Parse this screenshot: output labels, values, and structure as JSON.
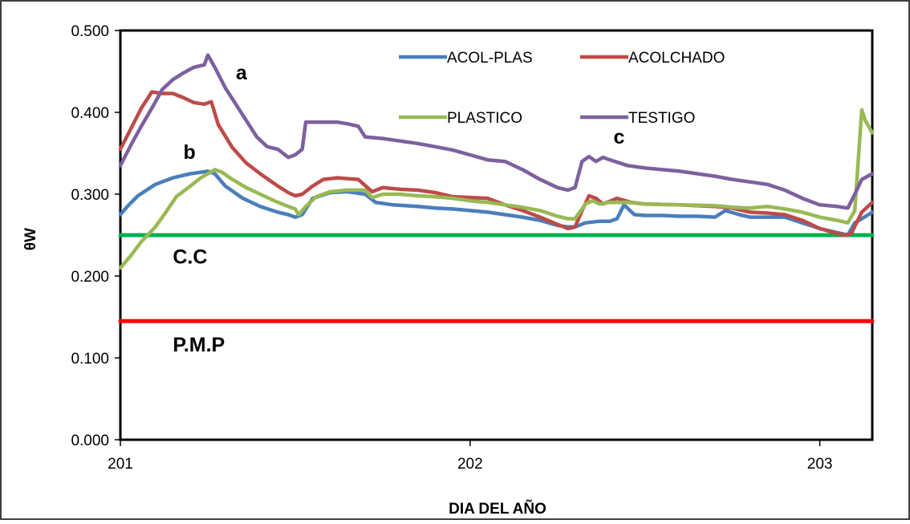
{
  "chart_data": {
    "type": "line",
    "title": "",
    "xlabel": "DIA DEL  AÑO",
    "ylabel": "θW",
    "xlim": [
      201,
      203.15
    ],
    "ylim": [
      0,
      0.5
    ],
    "x_ticks": [
      201,
      202,
      203
    ],
    "x_tick_labels": [
      "201",
      "202",
      "203"
    ],
    "y_ticks": [
      0,
      0.1,
      0.2,
      0.3,
      0.4,
      0.5
    ],
    "y_tick_labels": [
      "0.000",
      "0.100",
      "0.200",
      "0.300",
      "0.400",
      "0.500"
    ],
    "grid": false,
    "legend_position": "top-right",
    "series": [
      {
        "name": "ACOL-PLAS",
        "color": "#4a7ebb",
        "points": [
          [
            201.0,
            0.275
          ],
          [
            201.02,
            0.285
          ],
          [
            201.05,
            0.298
          ],
          [
            201.1,
            0.312
          ],
          [
            201.15,
            0.32
          ],
          [
            201.2,
            0.325
          ],
          [
            201.25,
            0.328
          ],
          [
            201.27,
            0.325
          ],
          [
            201.3,
            0.31
          ],
          [
            201.35,
            0.295
          ],
          [
            201.4,
            0.285
          ],
          [
            201.45,
            0.278
          ],
          [
            201.48,
            0.275
          ],
          [
            201.5,
            0.272
          ],
          [
            201.52,
            0.275
          ],
          [
            201.55,
            0.295
          ],
          [
            201.6,
            0.302
          ],
          [
            201.65,
            0.303
          ],
          [
            201.7,
            0.3
          ],
          [
            201.73,
            0.29
          ],
          [
            201.78,
            0.287
          ],
          [
            201.85,
            0.285
          ],
          [
            201.9,
            0.283
          ],
          [
            201.95,
            0.282
          ],
          [
            202.0,
            0.28
          ],
          [
            202.05,
            0.278
          ],
          [
            202.1,
            0.275
          ],
          [
            202.15,
            0.272
          ],
          [
            202.2,
            0.268
          ],
          [
            202.25,
            0.262
          ],
          [
            202.28,
            0.26
          ],
          [
            202.3,
            0.26
          ],
          [
            202.33,
            0.265
          ],
          [
            202.37,
            0.267
          ],
          [
            202.4,
            0.267
          ],
          [
            202.42,
            0.27
          ],
          [
            202.44,
            0.287
          ],
          [
            202.47,
            0.275
          ],
          [
            202.5,
            0.274
          ],
          [
            202.55,
            0.274
          ],
          [
            202.6,
            0.273
          ],
          [
            202.65,
            0.273
          ],
          [
            202.7,
            0.272
          ],
          [
            202.73,
            0.28
          ],
          [
            202.77,
            0.275
          ],
          [
            202.8,
            0.272
          ],
          [
            202.85,
            0.272
          ],
          [
            202.9,
            0.272
          ],
          [
            202.95,
            0.265
          ],
          [
            203.0,
            0.258
          ],
          [
            203.05,
            0.253
          ],
          [
            203.08,
            0.25
          ],
          [
            203.1,
            0.265
          ],
          [
            203.12,
            0.27
          ],
          [
            203.15,
            0.278
          ]
        ]
      },
      {
        "name": "ACOLCHADO",
        "color": "#be4b48",
        "points": [
          [
            201.0,
            0.355
          ],
          [
            201.03,
            0.38
          ],
          [
            201.06,
            0.405
          ],
          [
            201.09,
            0.425
          ],
          [
            201.12,
            0.423
          ],
          [
            201.15,
            0.423
          ],
          [
            201.18,
            0.418
          ],
          [
            201.21,
            0.412
          ],
          [
            201.24,
            0.41
          ],
          [
            201.26,
            0.413
          ],
          [
            201.28,
            0.385
          ],
          [
            201.32,
            0.357
          ],
          [
            201.36,
            0.338
          ],
          [
            201.4,
            0.325
          ],
          [
            201.45,
            0.31
          ],
          [
            201.48,
            0.302
          ],
          [
            201.5,
            0.298
          ],
          [
            201.52,
            0.3
          ],
          [
            201.55,
            0.31
          ],
          [
            201.58,
            0.318
          ],
          [
            201.62,
            0.32
          ],
          [
            201.68,
            0.318
          ],
          [
            201.72,
            0.303
          ],
          [
            201.75,
            0.308
          ],
          [
            201.8,
            0.306
          ],
          [
            201.85,
            0.305
          ],
          [
            201.9,
            0.302
          ],
          [
            201.95,
            0.297
          ],
          [
            202.0,
            0.296
          ],
          [
            202.05,
            0.295
          ],
          [
            202.1,
            0.287
          ],
          [
            202.15,
            0.28
          ],
          [
            202.2,
            0.272
          ],
          [
            202.25,
            0.263
          ],
          [
            202.28,
            0.258
          ],
          [
            202.3,
            0.26
          ],
          [
            202.32,
            0.28
          ],
          [
            202.34,
            0.298
          ],
          [
            202.36,
            0.295
          ],
          [
            202.38,
            0.288
          ],
          [
            202.42,
            0.295
          ],
          [
            202.46,
            0.29
          ],
          [
            202.5,
            0.288
          ],
          [
            202.6,
            0.287
          ],
          [
            202.7,
            0.285
          ],
          [
            202.75,
            0.283
          ],
          [
            202.8,
            0.278
          ],
          [
            202.85,
            0.277
          ],
          [
            202.9,
            0.275
          ],
          [
            202.95,
            0.268
          ],
          [
            203.0,
            0.258
          ],
          [
            203.05,
            0.252
          ],
          [
            203.07,
            0.25
          ],
          [
            203.09,
            0.252
          ],
          [
            203.12,
            0.278
          ],
          [
            203.15,
            0.29
          ]
        ]
      },
      {
        "name": "PLASTICO",
        "color": "#98b954",
        "points": [
          [
            201.0,
            0.21
          ],
          [
            201.03,
            0.225
          ],
          [
            201.06,
            0.242
          ],
          [
            201.1,
            0.26
          ],
          [
            201.13,
            0.278
          ],
          [
            201.16,
            0.297
          ],
          [
            201.2,
            0.31
          ],
          [
            201.23,
            0.32
          ],
          [
            201.25,
            0.325
          ],
          [
            201.27,
            0.33
          ],
          [
            201.29,
            0.327
          ],
          [
            201.32,
            0.318
          ],
          [
            201.36,
            0.308
          ],
          [
            201.4,
            0.3
          ],
          [
            201.44,
            0.292
          ],
          [
            201.48,
            0.285
          ],
          [
            201.5,
            0.282
          ],
          [
            201.51,
            0.275
          ],
          [
            201.53,
            0.285
          ],
          [
            201.56,
            0.297
          ],
          [
            201.6,
            0.303
          ],
          [
            201.65,
            0.305
          ],
          [
            201.7,
            0.305
          ],
          [
            201.72,
            0.296
          ],
          [
            201.75,
            0.3
          ],
          [
            201.8,
            0.3
          ],
          [
            201.85,
            0.298
          ],
          [
            201.9,
            0.297
          ],
          [
            201.95,
            0.295
          ],
          [
            202.0,
            0.292
          ],
          [
            202.05,
            0.29
          ],
          [
            202.1,
            0.287
          ],
          [
            202.15,
            0.284
          ],
          [
            202.2,
            0.28
          ],
          [
            202.25,
            0.273
          ],
          [
            202.28,
            0.27
          ],
          [
            202.3,
            0.27
          ],
          [
            202.33,
            0.288
          ],
          [
            202.35,
            0.292
          ],
          [
            202.37,
            0.288
          ],
          [
            202.4,
            0.29
          ],
          [
            202.45,
            0.29
          ],
          [
            202.5,
            0.288
          ],
          [
            202.6,
            0.287
          ],
          [
            202.7,
            0.286
          ],
          [
            202.75,
            0.284
          ],
          [
            202.8,
            0.283
          ],
          [
            202.85,
            0.285
          ],
          [
            202.9,
            0.282
          ],
          [
            202.95,
            0.278
          ],
          [
            203.0,
            0.272
          ],
          [
            203.05,
            0.268
          ],
          [
            203.08,
            0.265
          ],
          [
            203.1,
            0.28
          ],
          [
            203.12,
            0.403
          ],
          [
            203.13,
            0.39
          ],
          [
            203.15,
            0.375
          ]
        ]
      },
      {
        "name": "TESTIGO",
        "color": "#7d60a0",
        "points": [
          [
            201.0,
            0.335
          ],
          [
            201.03,
            0.36
          ],
          [
            201.06,
            0.383
          ],
          [
            201.09,
            0.405
          ],
          [
            201.12,
            0.428
          ],
          [
            201.15,
            0.44
          ],
          [
            201.18,
            0.448
          ],
          [
            201.21,
            0.455
          ],
          [
            201.24,
            0.458
          ],
          [
            201.25,
            0.47
          ],
          [
            201.27,
            0.455
          ],
          [
            201.3,
            0.43
          ],
          [
            201.33,
            0.41
          ],
          [
            201.36,
            0.39
          ],
          [
            201.39,
            0.37
          ],
          [
            201.42,
            0.358
          ],
          [
            201.45,
            0.355
          ],
          [
            201.48,
            0.345
          ],
          [
            201.5,
            0.348
          ],
          [
            201.52,
            0.355
          ],
          [
            201.53,
            0.388
          ],
          [
            201.58,
            0.388
          ],
          [
            201.62,
            0.388
          ],
          [
            201.65,
            0.386
          ],
          [
            201.68,
            0.383
          ],
          [
            201.7,
            0.37
          ],
          [
            201.75,
            0.368
          ],
          [
            201.8,
            0.365
          ],
          [
            201.85,
            0.362
          ],
          [
            201.9,
            0.358
          ],
          [
            201.95,
            0.354
          ],
          [
            202.0,
            0.348
          ],
          [
            202.05,
            0.342
          ],
          [
            202.1,
            0.34
          ],
          [
            202.15,
            0.33
          ],
          [
            202.2,
            0.318
          ],
          [
            202.25,
            0.308
          ],
          [
            202.28,
            0.305
          ],
          [
            202.3,
            0.308
          ],
          [
            202.32,
            0.34
          ],
          [
            202.34,
            0.346
          ],
          [
            202.36,
            0.34
          ],
          [
            202.38,
            0.345
          ],
          [
            202.4,
            0.342
          ],
          [
            202.45,
            0.335
          ],
          [
            202.5,
            0.332
          ],
          [
            202.55,
            0.33
          ],
          [
            202.6,
            0.328
          ],
          [
            202.65,
            0.325
          ],
          [
            202.7,
            0.322
          ],
          [
            202.75,
            0.318
          ],
          [
            202.8,
            0.315
          ],
          [
            202.85,
            0.312
          ],
          [
            202.9,
            0.305
          ],
          [
            202.95,
            0.295
          ],
          [
            203.0,
            0.287
          ],
          [
            203.05,
            0.285
          ],
          [
            203.08,
            0.283
          ],
          [
            203.1,
            0.3
          ],
          [
            203.12,
            0.318
          ],
          [
            203.15,
            0.325
          ]
        ]
      },
      {
        "name": "C.C",
        "color": "#00b050",
        "points": [
          [
            201.0,
            0.25
          ],
          [
            203.15,
            0.25
          ]
        ]
      },
      {
        "name": "P.M.P",
        "color": "#ff0000",
        "points": [
          [
            201.0,
            0.145
          ],
          [
            203.15,
            0.145
          ]
        ]
      }
    ],
    "legend": [
      "ACOL-PLAS",
      "ACOLCHADO",
      "PLASTICO",
      "TESTIGO"
    ],
    "annotations": [
      {
        "text": "a",
        "x": 201.33,
        "y": 0.44
      },
      {
        "text": "b",
        "x": 201.18,
        "y": 0.343
      },
      {
        "text": "c",
        "x": 202.41,
        "y": 0.362
      },
      {
        "text": "C.C",
        "x": 201.15,
        "y": 0.215
      },
      {
        "text": "P.M.P",
        "x": 201.15,
        "y": 0.108
      }
    ]
  }
}
